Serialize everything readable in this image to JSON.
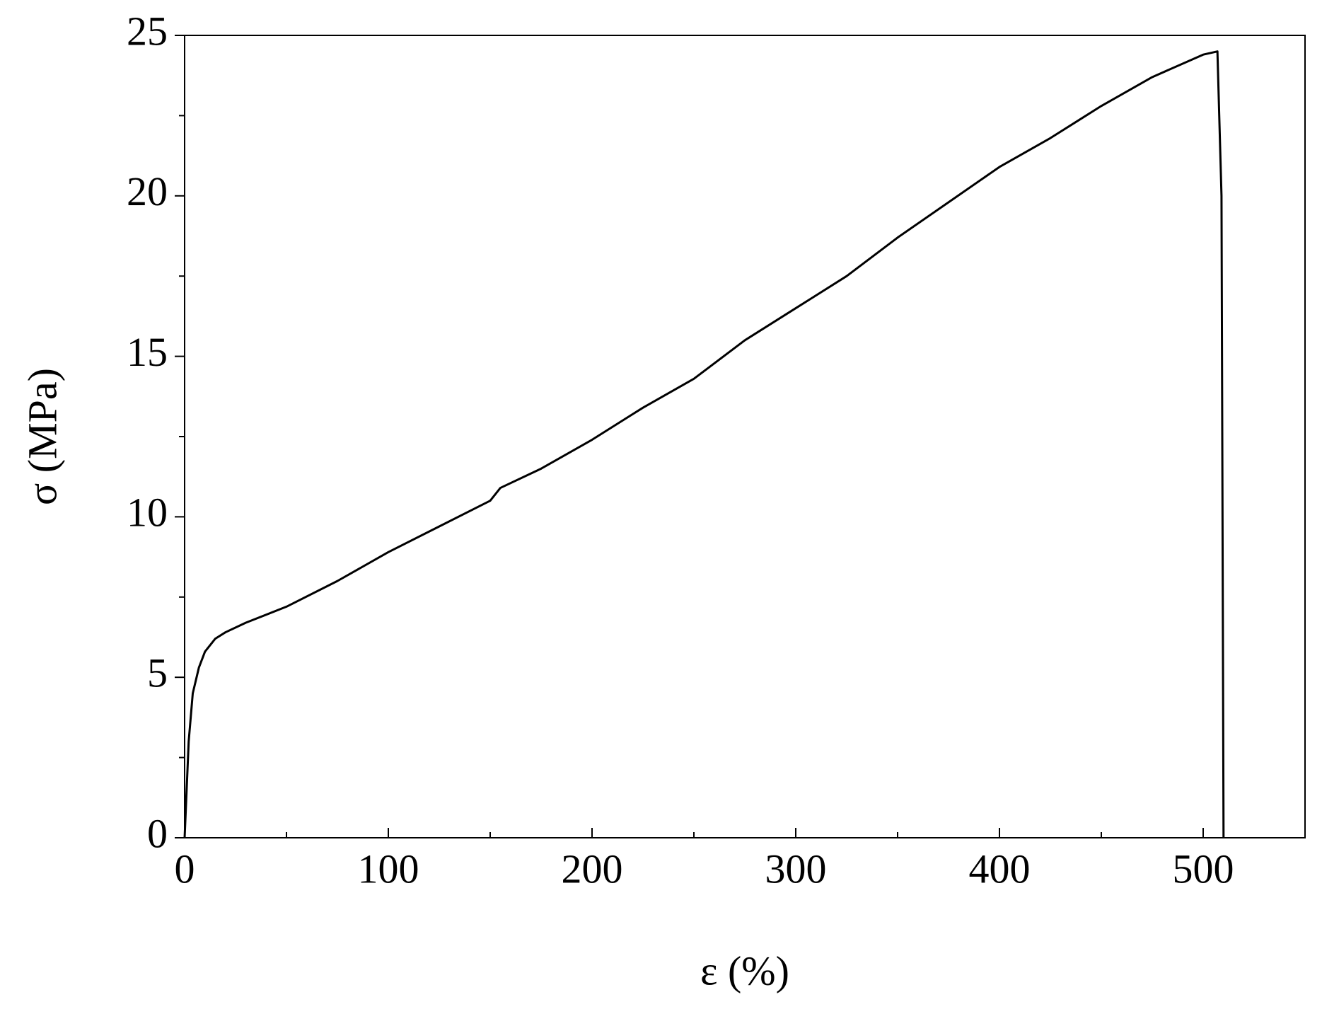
{
  "chart_data": {
    "type": "line",
    "xlabel": "ε (%)",
    "ylabel": "σ (MPa)",
    "xlim": [
      0,
      550
    ],
    "ylim": [
      0,
      25
    ],
    "xticks": [
      0,
      100,
      200,
      300,
      400,
      500
    ],
    "yticks": [
      0,
      5,
      10,
      15,
      20,
      25
    ],
    "xminorticks": [
      50,
      150,
      250,
      350,
      450
    ],
    "yminorticks": [
      2.5,
      7.5,
      12.5,
      17.5,
      22.5
    ],
    "series": [
      {
        "color": "#000000",
        "x": [
          0,
          1,
          2,
          4,
          7,
          10,
          15,
          20,
          30,
          50,
          75,
          100,
          125,
          150,
          155,
          175,
          200,
          225,
          250,
          275,
          300,
          325,
          350,
          375,
          400,
          425,
          450,
          475,
          500,
          507,
          509,
          510
        ],
        "values": [
          0,
          1.5,
          3,
          4.5,
          5.3,
          5.8,
          6.2,
          6.4,
          6.7,
          7.2,
          8.0,
          8.9,
          9.7,
          10.5,
          10.9,
          11.5,
          12.4,
          13.4,
          14.3,
          15.5,
          16.5,
          17.5,
          18.7,
          19.8,
          20.9,
          21.8,
          22.8,
          23.7,
          24.4,
          24.5,
          20,
          0
        ]
      }
    ]
  }
}
